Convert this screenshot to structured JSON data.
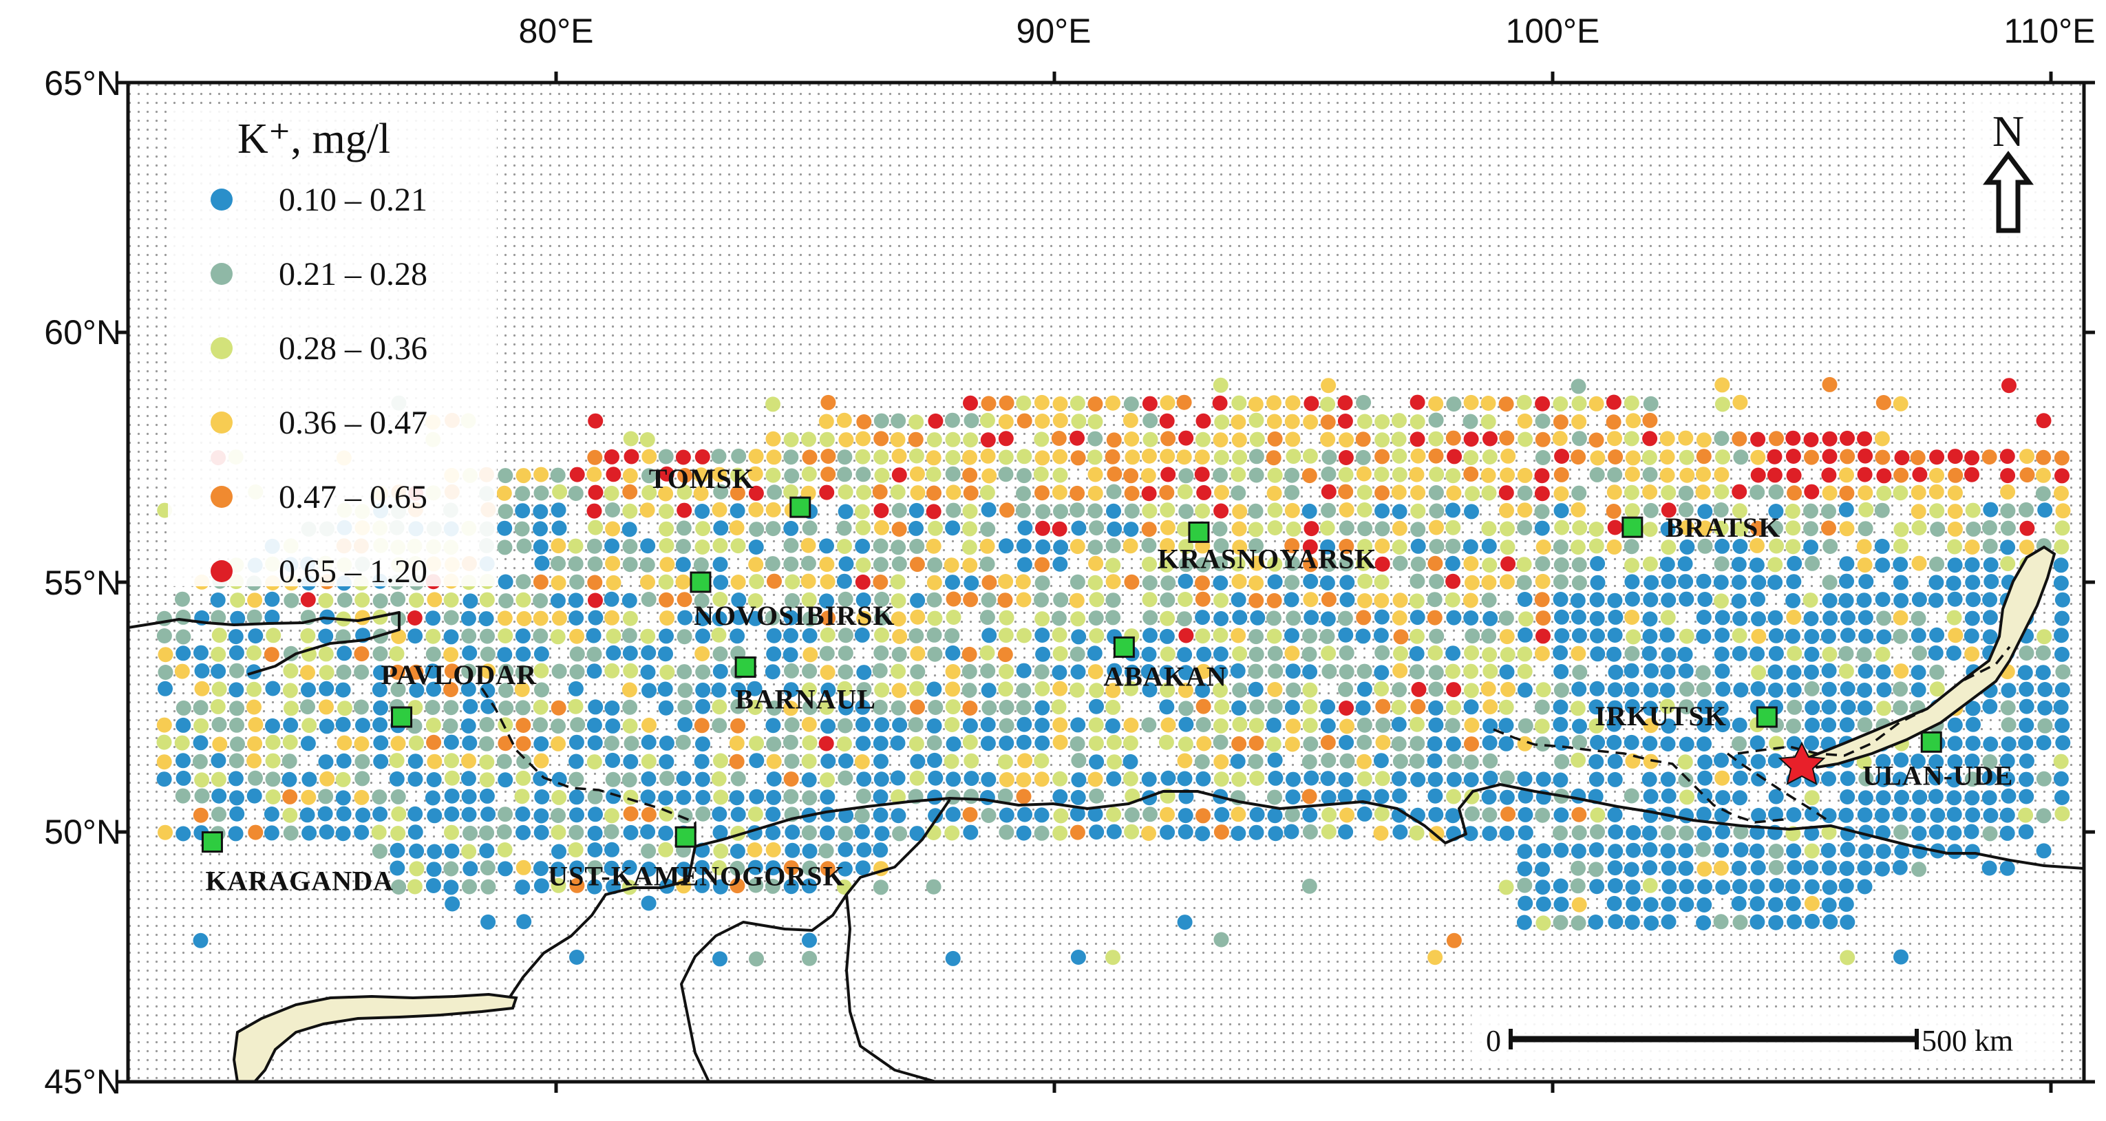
{
  "axes": {
    "x_ticks": [
      "80°E",
      "90°E",
      "100°E",
      "110°E"
    ],
    "y_ticks": [
      "65°N",
      "60°N",
      "55°N",
      "50°N",
      "45°N"
    ]
  },
  "legend": {
    "title": "K⁺, mg/l",
    "classes": [
      {
        "label": "0.10 – 0.21",
        "color": "#2a8fca"
      },
      {
        "label": "0.21 – 0.28",
        "color": "#8fb8a6"
      },
      {
        "label": "0.28 – 0.36",
        "color": "#d3e27a"
      },
      {
        "label": "0.36 – 0.47",
        "color": "#f7cc52"
      },
      {
        "label": "0.47 – 0.65",
        "color": "#f08a30"
      },
      {
        "label": "0.65 – 1.20",
        "color": "#de1f26"
      }
    ]
  },
  "north_arrow": {
    "label": "N"
  },
  "scale_bar": {
    "start_label": "0",
    "end_label": "500 km"
  },
  "cities": [
    {
      "name": "TOMSK",
      "lon": 84.9,
      "lat": 56.5
    },
    {
      "name": "KRASNOYARSK",
      "lon": 92.9,
      "lat": 56.0
    },
    {
      "name": "BRATSK",
      "lon": 101.6,
      "lat": 56.1
    },
    {
      "name": "NOVOSIBIRSK",
      "lon": 82.9,
      "lat": 55.0
    },
    {
      "name": "PAVLODAR",
      "lon": 76.9,
      "lat": 52.3
    },
    {
      "name": "BARNAUL",
      "lon": 83.8,
      "lat": 53.3
    },
    {
      "name": "ABAKAN",
      "lon": 91.4,
      "lat": 53.7
    },
    {
      "name": "IRKUTSK",
      "lon": 104.3,
      "lat": 52.3
    },
    {
      "name": "ULAN-UDE",
      "lon": 107.6,
      "lat": 51.8
    },
    {
      "name": "KARAGANDA",
      "lon": 73.1,
      "lat": 49.8
    },
    {
      "name": "UST-KAMENOGORSK",
      "lon": 82.6,
      "lat": 49.9
    }
  ],
  "colors": {
    "city_marker": "#2ecc40",
    "star": "#e8202a",
    "water": "#f2eecc",
    "background_dot": "#9a9a9a",
    "border": "#111111"
  }
}
